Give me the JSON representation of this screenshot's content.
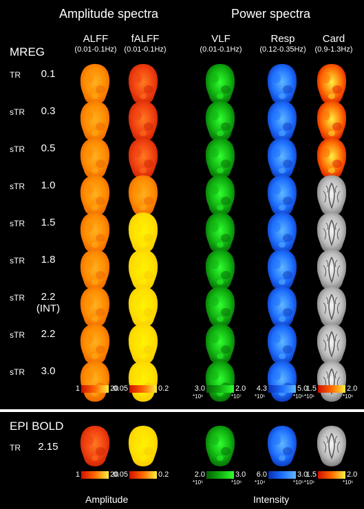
{
  "headers": {
    "amplitude": "Amplitude spectra",
    "power": "Power spectra"
  },
  "columns": [
    {
      "key": "alff",
      "name": "ALFF",
      "range": "(0.01-0.1Hz)",
      "scheme": "orange"
    },
    {
      "key": "falff",
      "name": "fALFF",
      "range": "(0.01-0.1Hz)",
      "scheme": "red"
    },
    {
      "key": "vlf",
      "name": "VLF",
      "range": "(0.01-0.1Hz)",
      "scheme": "green"
    },
    {
      "key": "resp",
      "name": "Resp",
      "range": "(0.12-0.35Hz)",
      "scheme": "blue"
    },
    {
      "key": "card",
      "name": "Card",
      "range": "(0.9-1.3Hz)",
      "scheme": "hot"
    }
  ],
  "mreg_label": "MREG",
  "rows": [
    {
      "label": "TR",
      "value": "0.1",
      "falff": "red",
      "card": "hot"
    },
    {
      "label": "sTR",
      "value": "0.3",
      "falff": "red",
      "card": "hot"
    },
    {
      "label": "sTR",
      "value": "0.5",
      "falff": "red",
      "card": "hot"
    },
    {
      "label": "sTR",
      "value": "1.0",
      "falff": "orange",
      "card": "gray"
    },
    {
      "label": "sTR",
      "value": "1.5",
      "falff": "yellow",
      "card": "gray"
    },
    {
      "label": "sTR",
      "value": "1.8",
      "falff": "yellow",
      "card": "gray"
    },
    {
      "label": "sTR",
      "value": "2.2",
      "sub": "(INT)",
      "falff": "yellow",
      "card": "gray"
    },
    {
      "label": "sTR",
      "value": "2.2",
      "falff": "yellow",
      "card": "gray"
    },
    {
      "label": "sTR",
      "value": "3.0",
      "falff": "yellow",
      "card": "gray"
    }
  ],
  "mreg_colorbars": [
    {
      "min": "1",
      "max": "20",
      "min_exp": "",
      "max_exp": "",
      "scheme": "hot"
    },
    {
      "min": "0.05",
      "max": "0.2",
      "min_exp": "",
      "max_exp": "",
      "scheme": "hot"
    },
    {
      "min": "3.0",
      "max": "2.0",
      "min_exp": "*10⁶",
      "max_exp": "*10⁷",
      "scheme": "green"
    },
    {
      "min": "4.3",
      "max": "5.0",
      "min_exp": "*10⁵",
      "max_exp": "*10⁶",
      "scheme": "blue"
    },
    {
      "min": "1.5",
      "max": "2.0",
      "min_exp": "*10⁵",
      "max_exp": "*10⁶",
      "scheme": "hot"
    }
  ],
  "epi": {
    "title": "EPI BOLD",
    "label": "TR",
    "value": "2.15",
    "colorbars": [
      {
        "min": "1",
        "max": "20",
        "min_exp": "",
        "max_exp": "",
        "scheme": "hot"
      },
      {
        "min": "0.05",
        "max": "0.2",
        "min_exp": "",
        "max_exp": "",
        "scheme": "hot"
      },
      {
        "min": "2.0",
        "max": "3.0",
        "min_exp": "*10⁵",
        "max_exp": "*10⁶",
        "scheme": "green"
      },
      {
        "min": "6.0",
        "max": "3.0",
        "min_exp": "*10⁴",
        "max_exp": "*10⁵",
        "scheme": "blue"
      },
      {
        "min": "1.5",
        "max": "2.0",
        "min_exp": "*10⁵",
        "max_exp": "*10⁶",
        "scheme": "hot"
      }
    ]
  },
  "bottom_labels": {
    "amplitude": "Amplitude",
    "intensity": "Intensity"
  },
  "colors": {
    "orange": [
      "#ffb020",
      "#ff8c00",
      "#e86000"
    ],
    "red": [
      "#ff7a20",
      "#f04010",
      "#c82000"
    ],
    "yellow": [
      "#fff200",
      "#ffe000",
      "#f5c800"
    ],
    "green": [
      "#30ff30",
      "#10b010",
      "#056005"
    ],
    "blue": [
      "#60b8ff",
      "#1e6fff",
      "#0a30b0"
    ],
    "hot": [
      "#ffee40",
      "#ff6a00",
      "#d01000"
    ],
    "gray": [
      "#f4f4f4",
      "#bdbdbd",
      "#707070"
    ]
  }
}
